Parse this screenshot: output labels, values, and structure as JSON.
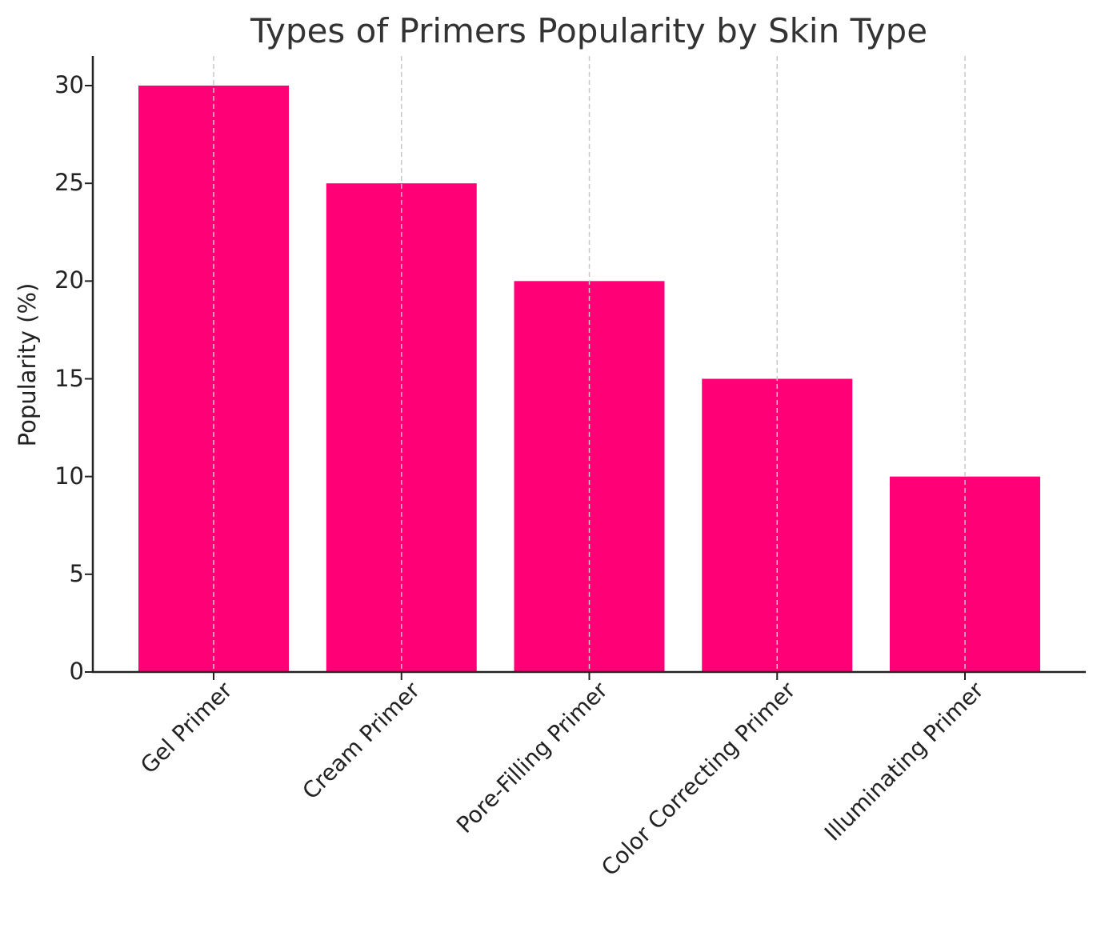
{
  "chart_data": {
    "type": "bar",
    "title": "Types of Primers Popularity by Skin Type",
    "xlabel": "",
    "ylabel": "Popularity (%)",
    "categories": [
      "Gel Primer",
      "Cream Primer",
      "Pore-Filling Primer",
      "Color Correcting Primer",
      "Illuminating Primer"
    ],
    "values": [
      30,
      25,
      20,
      15,
      10
    ],
    "ylim": [
      0,
      31.5
    ],
    "yticks": [
      0,
      5,
      10,
      15,
      20,
      25,
      30
    ],
    "grid": "x-axis dashed vertical lines",
    "legend": "none",
    "bar_color": "#ff0077"
  }
}
